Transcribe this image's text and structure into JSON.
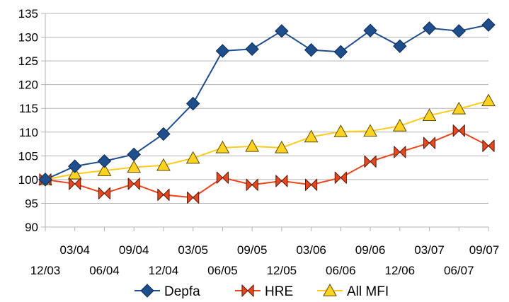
{
  "chart_data": {
    "type": "line",
    "title": "",
    "xlabel": "",
    "ylabel": "",
    "ylim": [
      90,
      135
    ],
    "yticks": [
      90,
      95,
      100,
      105,
      110,
      115,
      120,
      125,
      130,
      135
    ],
    "grid": "horizontal",
    "legend": "bottom",
    "categories": [
      "12/03",
      "03/04",
      "06/04",
      "09/04",
      "12/04",
      "03/05",
      "06/05",
      "09/05",
      "12/05",
      "03/06",
      "06/06",
      "09/06",
      "12/06",
      "03/07",
      "06/07",
      "09/07"
    ],
    "series": [
      {
        "name": "Depfa",
        "marker": "diamond",
        "line_color": "#1f4e8c",
        "marker_fill": "#1f4e8c",
        "values": [
          100,
          102.8,
          103.9,
          105.3,
          109.6,
          116.0,
          127.1,
          127.5,
          131.3,
          127.3,
          126.9,
          131.4,
          128.1,
          131.9,
          131.3,
          132.6
        ]
      },
      {
        "name": "HRE",
        "marker": "bowtie",
        "line_color": "#e8461c",
        "marker_fill": "#e8461c",
        "values": [
          100,
          99.1,
          97.1,
          99.1,
          96.8,
          96.2,
          100.4,
          98.9,
          99.7,
          98.9,
          100.4,
          103.8,
          105.8,
          107.7,
          110.3,
          107.1
        ]
      },
      {
        "name": "All MFI",
        "marker": "triangle",
        "line_color": "#ffcc1a",
        "marker_fill": "#ffd320",
        "values": [
          100,
          101.2,
          101.9,
          102.6,
          103.0,
          104.5,
          106.7,
          107.0,
          106.7,
          109.0,
          110.1,
          110.2,
          111.3,
          113.5,
          114.9,
          116.6
        ]
      }
    ]
  }
}
